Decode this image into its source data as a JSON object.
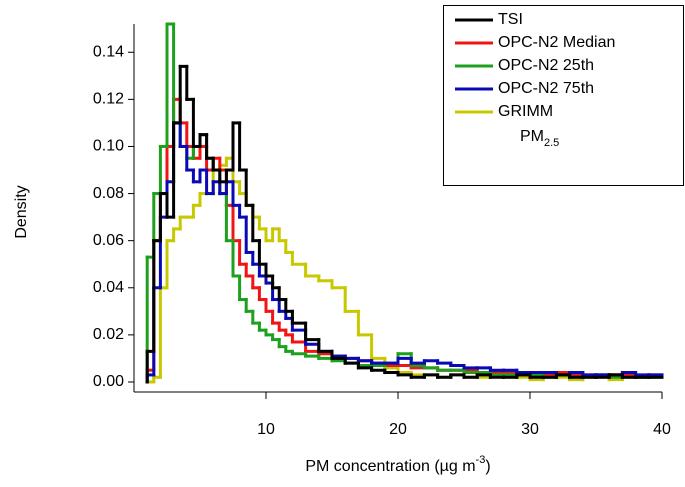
{
  "chart_data": {
    "type": "histogram",
    "ylabel": "Density",
    "xlabel": {
      "text": "PM concentration (µg m",
      "sup": "-3",
      "tail": ")"
    },
    "legend_note": {
      "text": "PM",
      "sub": "2.5"
    },
    "legend": "top-right",
    "xlim": [
      0,
      40
    ],
    "ylim": [
      -0.004,
      0.152
    ],
    "xticks": [
      10,
      20,
      30,
      40
    ],
    "yticks": [
      {
        "value": 0,
        "label": "0.00"
      },
      {
        "value": 0.02,
        "label": "0.02"
      },
      {
        "value": 0.04,
        "label": "0.04"
      },
      {
        "value": 0.06,
        "label": "0.06"
      },
      {
        "value": 0.08,
        "label": "0.08"
      },
      {
        "value": 0.1,
        "label": "0.10"
      },
      {
        "value": 0.12,
        "label": "0.12"
      },
      {
        "value": 0.14,
        "label": "0.14"
      }
    ],
    "bins": [
      1,
      1.5,
      2,
      2.5,
      3,
      3.5,
      4,
      4.5,
      5,
      5.5,
      6,
      6.5,
      7,
      7.5,
      8,
      8.5,
      9,
      9.5,
      10,
      10.5,
      11,
      11.5,
      12,
      13,
      14,
      15,
      16,
      17,
      18,
      19,
      20,
      21,
      22,
      23,
      24,
      25,
      26,
      27,
      28,
      29,
      30,
      31,
      32,
      33,
      34,
      35,
      36,
      37,
      38,
      39,
      40
    ],
    "series": [
      {
        "name": "GRIMM",
        "color": "#c8c800",
        "values": [
          0,
          0.002,
          0.04,
          0.06,
          0.065,
          0.07,
          0.07,
          0.075,
          0.08,
          0.08,
          0.09,
          0.092,
          0.095,
          0.085,
          0.08,
          0.075,
          0.07,
          0.065,
          0.06,
          0.065,
          0.06,
          0.055,
          0.05,
          0.045,
          0.043,
          0.04,
          0.03,
          0.02,
          0.01,
          0.006,
          0.004,
          0.003,
          0.003,
          0.002,
          0.003,
          0.002,
          0.002,
          0.003,
          0.002,
          0.002,
          0.001,
          0.002,
          0.002,
          0.001,
          0.002,
          0.002,
          0.001,
          0.002,
          0.002,
          0.002
        ]
      },
      {
        "name": "OPC-N2 Median",
        "color": "#f01414",
        "values": [
          0.005,
          0.06,
          0.08,
          0.1,
          0.12,
          0.11,
          0.1,
          0.095,
          0.1,
          0.09,
          0.095,
          0.09,
          0.075,
          0.06,
          0.05,
          0.045,
          0.04,
          0.035,
          0.03,
          0.025,
          0.022,
          0.02,
          0.017,
          0.013,
          0.012,
          0.011,
          0.01,
          0.009,
          0.008,
          0.007,
          0.007,
          0.006,
          0.006,
          0.005,
          0.005,
          0.005,
          0.004,
          0.004,
          0.004,
          0.004,
          0.003,
          0.003,
          0.004,
          0.003,
          0.003,
          0.003,
          0.003,
          0.003,
          0.002,
          0.003
        ]
      },
      {
        "name": "OPC-N2 25th",
        "color": "#1ea01e",
        "values": [
          0.053,
          0.08,
          0.1,
          0.152,
          0.11,
          0.1,
          0.095,
          0.1,
          0.105,
          0.095,
          0.09,
          0.08,
          0.06,
          0.045,
          0.035,
          0.03,
          0.025,
          0.022,
          0.02,
          0.018,
          0.015,
          0.013,
          0.012,
          0.011,
          0.01,
          0.009,
          0.008,
          0.007,
          0.007,
          0.008,
          0.012,
          0.007,
          0.006,
          0.005,
          0.005,
          0.004,
          0.004,
          0.003,
          0.003,
          0.003,
          0.003,
          0.002,
          0.003,
          0.002,
          0.002,
          0.003,
          0.002,
          0.002,
          0.002,
          0.002
        ]
      },
      {
        "name": "OPC-N2 75th",
        "color": "#0a0ab4",
        "values": [
          0.003,
          0.04,
          0.07,
          0.085,
          0.11,
          0.1,
          0.09,
          0.085,
          0.09,
          0.08,
          0.085,
          0.08,
          0.085,
          0.075,
          0.07,
          0.055,
          0.05,
          0.045,
          0.042,
          0.035,
          0.03,
          0.027,
          0.022,
          0.016,
          0.013,
          0.011,
          0.01,
          0.009,
          0.008,
          0.008,
          0.01,
          0.008,
          0.009,
          0.008,
          0.007,
          0.006,
          0.006,
          0.005,
          0.005,
          0.004,
          0.004,
          0.004,
          0.003,
          0.004,
          0.003,
          0.003,
          0.003,
          0.004,
          0.003,
          0.003
        ]
      },
      {
        "name": "TSI",
        "color": "#000000",
        "values": [
          0.013,
          0.06,
          0.08,
          0.07,
          0.11,
          0.134,
          0.12,
          0.1,
          0.105,
          0.095,
          0.09,
          0.085,
          0.09,
          0.11,
          0.09,
          0.075,
          0.06,
          0.05,
          0.045,
          0.04,
          0.035,
          0.03,
          0.025,
          0.018,
          0.013,
          0.01,
          0.008,
          0.006,
          0.005,
          0.004,
          0.003,
          0.002,
          0.003,
          0.002,
          0.003,
          0.002,
          0.003,
          0.002,
          0.002,
          0.003,
          0.002,
          0.002,
          0.003,
          0.002,
          0.002,
          0.002,
          0.003,
          0.002,
          0.002,
          0.002
        ]
      }
    ],
    "legend_order": [
      4,
      1,
      2,
      3,
      0
    ]
  }
}
